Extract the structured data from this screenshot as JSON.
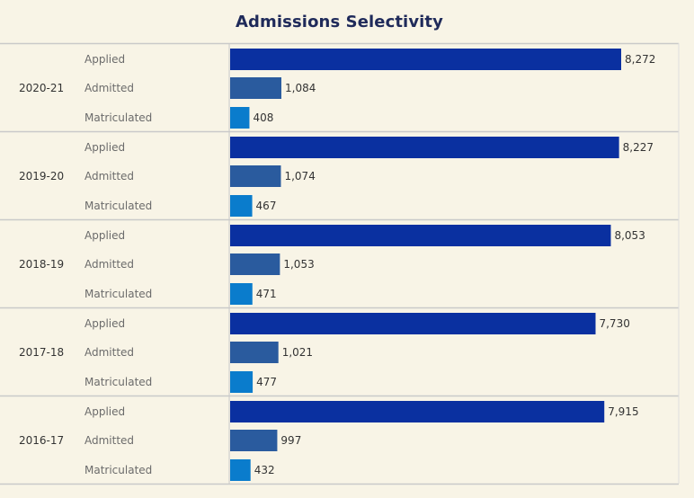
{
  "chart_data": {
    "type": "bar",
    "orientation": "horizontal",
    "title": "Admissions Selectivity",
    "measures": [
      "Applied",
      "Admitted",
      "Matriculated"
    ],
    "colors": {
      "Applied": "#0a30a0",
      "Admitted": "#2a5b9e",
      "Matriculated": "#0a7ccc"
    },
    "groups": [
      {
        "year": "2020-21",
        "values": [
          8272,
          1084,
          408
        ],
        "labels": [
          "8,272",
          "1,084",
          "408"
        ]
      },
      {
        "year": "2019-20",
        "values": [
          8227,
          1074,
          467
        ],
        "labels": [
          "8,227",
          "1,074",
          "467"
        ]
      },
      {
        "year": "2018-19",
        "values": [
          8053,
          1053,
          471
        ],
        "labels": [
          "8,053",
          "1,053",
          "471"
        ]
      },
      {
        "year": "2017-18",
        "values": [
          7730,
          1021,
          477
        ],
        "labels": [
          "7,730",
          "1,021",
          "477"
        ]
      },
      {
        "year": "2016-17",
        "values": [
          7915,
          997,
          432
        ],
        "labels": [
          "7,915",
          "997",
          "432"
        ]
      }
    ],
    "xlim": [
      0,
      8272
    ],
    "grid": false,
    "legend": "none"
  }
}
